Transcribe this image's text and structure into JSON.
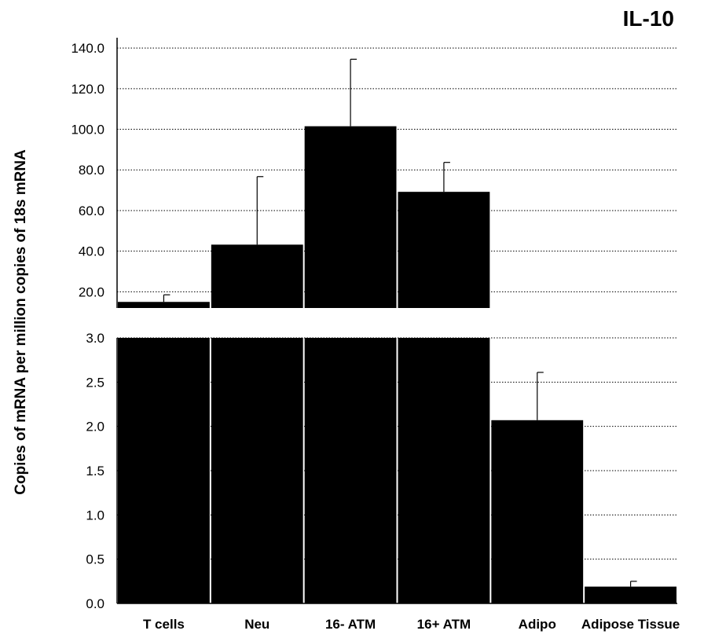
{
  "chart_data": {
    "type": "bar",
    "title": "IL-10",
    "ylabel": "Copies of mRNA per million copies of 18s mRNA",
    "xlabel": "",
    "categories": [
      "T cells",
      "Neu",
      "16- ATM",
      "16+ ATM",
      "Adipo",
      "Adipose Tissue"
    ],
    "values": [
      15.0,
      43.2,
      101.5,
      69.2,
      2.07,
      0.19
    ],
    "error": [
      3.5,
      33.5,
      33.0,
      14.5,
      0.54,
      0.06
    ],
    "broken_axis": true,
    "upper_panel": {
      "ylim": [
        12.0,
        142.0
      ],
      "ticks": [
        "20.0",
        "40.0",
        "60.0",
        "80.0",
        "100.0",
        "120.0",
        "140.0"
      ]
    },
    "lower_panel": {
      "ylim": [
        0.0,
        3.0
      ],
      "ticks": [
        "0.0",
        "0.5",
        "1.0",
        "1.5",
        "2.0",
        "2.5",
        "3.0"
      ]
    },
    "grid": true,
    "bar_color": "#000000"
  }
}
